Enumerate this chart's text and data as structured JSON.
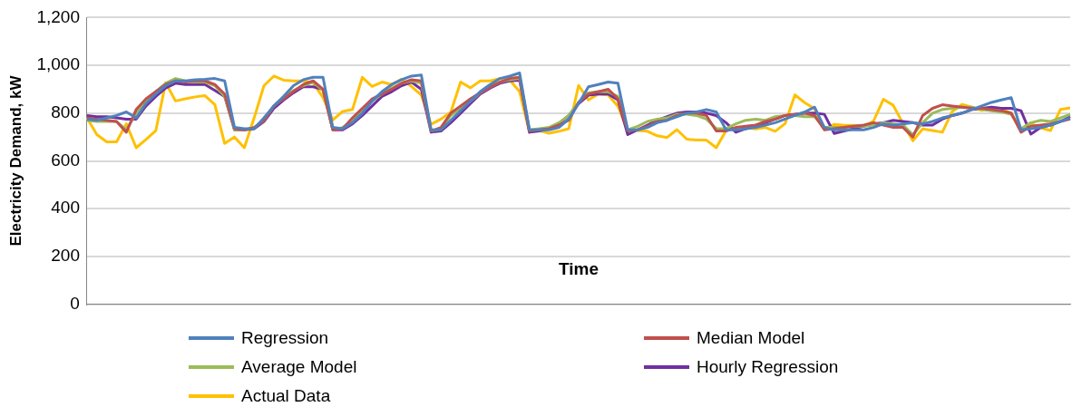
{
  "chart_data": {
    "type": "line",
    "xlabel": "Time",
    "ylabel": "Electricity Demand, kW",
    "categories": [
      null,
      null,
      null,
      null,
      null,
      null,
      null,
      null,
      null,
      null,
      null,
      null,
      null,
      null,
      null,
      null,
      null,
      null,
      null,
      null,
      null,
      null,
      null,
      null,
      null,
      null,
      null,
      null,
      null,
      null,
      null,
      null,
      null,
      null,
      null,
      null,
      null,
      null,
      null,
      null,
      null,
      null,
      null,
      null,
      null,
      null,
      null,
      null,
      null,
      null,
      null,
      null,
      null,
      null,
      null,
      null,
      null,
      null,
      null,
      null,
      null,
      null,
      null,
      null,
      null,
      null,
      null,
      null,
      null,
      null,
      null,
      null,
      null,
      null,
      null,
      null,
      null,
      null,
      null,
      null,
      null,
      null,
      null,
      null,
      null,
      null,
      null,
      null,
      null,
      null,
      null,
      null,
      null,
      null,
      null,
      null,
      null,
      null,
      null,
      null,
      null
    ],
    "series": [
      {
        "name": "Regression",
        "color": "#4f81bd",
        "values": [
          775,
          770,
          780,
          790,
          805,
          780,
          840,
          880,
          915,
          935,
          935,
          940,
          942,
          945,
          935,
          740,
          735,
          735,
          780,
          830,
          870,
          915,
          940,
          950,
          950,
          740,
          735,
          760,
          800,
          850,
          890,
          920,
          940,
          955,
          960,
          730,
          730,
          770,
          810,
          850,
          890,
          920,
          945,
          955,
          968,
          730,
          730,
          730,
          740,
          775,
          840,
          910,
          920,
          930,
          925,
          730,
          730,
          740,
          760,
          770,
          785,
          800,
          805,
          815,
          805,
          730,
          730,
          735,
          740,
          750,
          760,
          775,
          790,
          805,
          825,
          740,
          730,
          730,
          730,
          730,
          740,
          755,
          750,
          755,
          760,
          755,
          765,
          780,
          790,
          800,
          815,
          830,
          845,
          855,
          865,
          730,
          735,
          740,
          750,
          765,
          780
        ]
      },
      {
        "name": "Median Model",
        "color": "#c0504d",
        "values": [
          780,
          775,
          770,
          765,
          720,
          815,
          860,
          890,
          920,
          935,
          930,
          935,
          935,
          920,
          880,
          735,
          730,
          740,
          770,
          830,
          860,
          890,
          920,
          935,
          900,
          730,
          735,
          780,
          820,
          860,
          880,
          900,
          925,
          940,
          935,
          725,
          740,
          800,
          830,
          860,
          885,
          910,
          930,
          945,
          950,
          725,
          730,
          735,
          750,
          770,
          845,
          880,
          890,
          900,
          860,
          725,
          730,
          745,
          765,
          770,
          790,
          800,
          800,
          790,
          725,
          725,
          740,
          745,
          750,
          765,
          775,
          790,
          795,
          800,
          790,
          730,
          735,
          740,
          745,
          750,
          760,
          750,
          740,
          740,
          700,
          790,
          820,
          835,
          830,
          825,
          820,
          820,
          815,
          810,
          800,
          720,
          745,
          750,
          755,
          765,
          775
        ]
      },
      {
        "name": "Average Model",
        "color": "#9bbb59",
        "values": [
          770,
          765,
          765,
          765,
          730,
          800,
          850,
          890,
          925,
          945,
          935,
          930,
          930,
          915,
          870,
          730,
          730,
          740,
          770,
          830,
          865,
          895,
          915,
          930,
          895,
          730,
          740,
          765,
          810,
          850,
          880,
          905,
          925,
          935,
          925,
          725,
          735,
          790,
          820,
          850,
          885,
          910,
          930,
          940,
          945,
          730,
          735,
          740,
          760,
          790,
          845,
          885,
          890,
          890,
          870,
          730,
          745,
          765,
          775,
          780,
          795,
          795,
          790,
          775,
          735,
          735,
          755,
          770,
          775,
          770,
          785,
          790,
          790,
          785,
          785,
          740,
          740,
          740,
          745,
          745,
          750,
          760,
          755,
          750,
          710,
          760,
          800,
          815,
          820,
          825,
          825,
          815,
          810,
          805,
          795,
          735,
          760,
          770,
          765,
          780,
          795
        ]
      },
      {
        "name": "Hourly Regression",
        "color": "#7030a0",
        "values": [
          790,
          785,
          785,
          780,
          775,
          775,
          830,
          870,
          905,
          925,
          920,
          920,
          920,
          895,
          870,
          730,
          730,
          735,
          765,
          820,
          855,
          885,
          910,
          910,
          900,
          730,
          730,
          755,
          790,
          830,
          870,
          890,
          915,
          930,
          900,
          720,
          725,
          760,
          800,
          840,
          880,
          905,
          925,
          935,
          938,
          720,
          725,
          735,
          755,
          790,
          840,
          875,
          880,
          880,
          855,
          710,
          730,
          750,
          770,
          785,
          800,
          805,
          805,
          800,
          790,
          760,
          720,
          735,
          745,
          760,
          775,
          790,
          795,
          800,
          800,
          795,
          715,
          725,
          735,
          745,
          755,
          760,
          770,
          765,
          760,
          750,
          750,
          775,
          790,
          800,
          815,
          820,
          825,
          820,
          820,
          810,
          712,
          740,
          750,
          765,
          785
        ]
      },
      {
        "name": "Actual Data",
        "color": "#ffc000",
        "values": [
          780,
          710,
          680,
          680,
          755,
          655,
          690,
          727,
          927,
          851,
          860,
          868,
          873,
          836,
          673,
          700,
          655,
          780,
          915,
          955,
          938,
          935,
          935,
          927,
          865,
          771,
          807,
          815,
          950,
          912,
          930,
          920,
          942,
          912,
          876,
          753,
          775,
          804,
          930,
          906,
          935,
          935,
          945,
          938,
          890,
          720,
          727,
          716,
          724,
          735,
          916,
          855,
          880,
          876,
          829,
          727,
          727,
          724,
          705,
          698,
          731,
          691,
          687,
          687,
          655,
          727,
          738,
          740,
          734,
          740,
          724,
          756,
          876,
          844,
          818,
          731,
          753,
          749,
          749,
          745,
          767,
          858,
          833,
          756,
          684,
          734,
          727,
          720,
          807,
          836,
          825,
          811,
          825,
          818,
          800,
          727,
          756,
          738,
          727,
          815,
          822
        ]
      }
    ],
    "ylim": [
      0,
      1200
    ],
    "yticks": [
      0,
      200,
      400,
      600,
      800,
      {
        "value": 1000,
        "label": "1,000"
      },
      {
        "value": 1200,
        "label": "1,200"
      }
    ],
    "grid": "y",
    "legend": "bottom",
    "tick_labels": "y",
    "marker": "none",
    "line_style": "solid"
  }
}
